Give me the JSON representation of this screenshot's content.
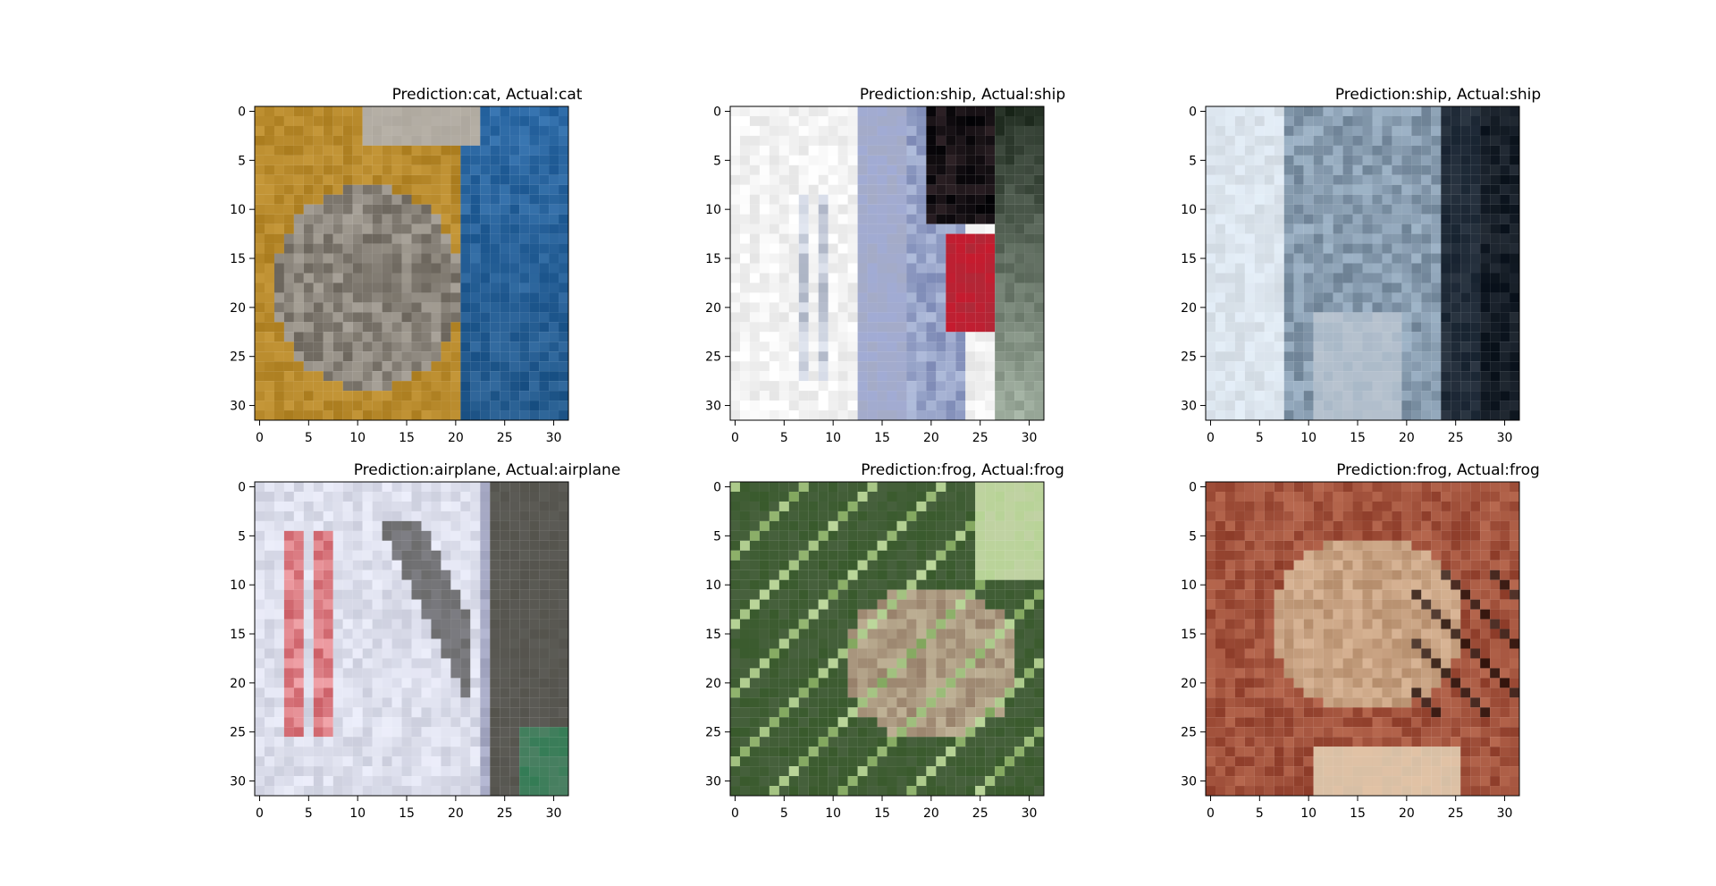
{
  "figure": {
    "background": "#ffffff",
    "axis_ticks": {
      "x": [
        "0",
        "5",
        "10",
        "15",
        "20",
        "25",
        "30"
      ],
      "y": [
        "0",
        "5",
        "10",
        "15",
        "20",
        "25",
        "30"
      ]
    }
  },
  "panels": [
    {
      "title": "Prediction:cat, Actual:cat",
      "colors": {
        "bg": "#b88a2c",
        "main": "#7a746b",
        "accent": "#2d6aa6",
        "light": "#d8d2c8",
        "dark": "#333333"
      }
    },
    {
      "title": "Prediction:ship, Actual:ship",
      "colors": {
        "bg": "#eeeeee",
        "main": "#d7dbe3",
        "accent": "#6e7bb8",
        "light": "#ffffff",
        "dark": "#0f0f12"
      }
    },
    {
      "title": "Prediction:ship, Actual:ship",
      "colors": {
        "bg": "#cfdbe6",
        "main": "#6f8396",
        "accent": "#2e3b4a",
        "light": "#eaf0f6",
        "dark": "#1a2430"
      }
    },
    {
      "title": "Prediction:airplane, Actual:airplane",
      "colors": {
        "bg": "#d3d6e8",
        "main": "#8d8d93",
        "accent": "#d86a72",
        "light": "#e6e7f0",
        "dark": "#3a3a36"
      }
    },
    {
      "title": "Prediction:frog, Actual:frog",
      "colors": {
        "bg": "#47683a",
        "main": "#a68f79",
        "accent": "#8fb46b",
        "light": "#cfe0b2",
        "dark": "#1f2a1b"
      }
    },
    {
      "title": "Prediction:frog, Actual:frog",
      "colors": {
        "bg": "#9b4a37",
        "main": "#c39b7a",
        "accent": "#b86b4c",
        "light": "#e4cdb3",
        "dark": "#2a1712"
      }
    }
  ]
}
